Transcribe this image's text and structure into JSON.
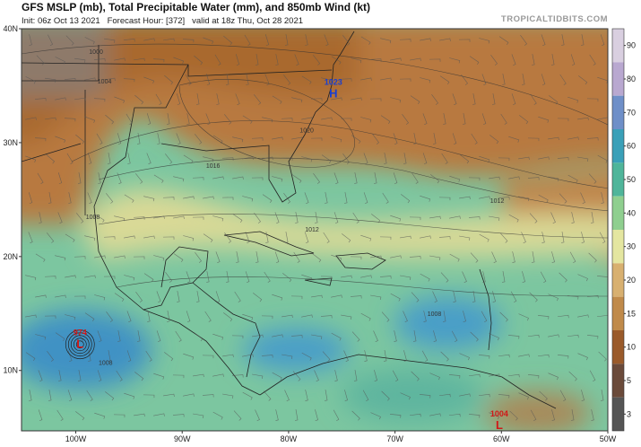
{
  "header": {
    "title": "GFS MSLP (mb), Total Precipitable Water (mm), and 850mb Wind (kt)",
    "subtitle": "Init: 06z Oct 13 2021   Forecast Hour: [372]   valid at 18z Thu, Oct 28 2021",
    "watermark": "TROPICALTIDBITS.COM"
  },
  "map": {
    "lonlim": [
      -105.1,
      -50
    ],
    "latlim": [
      4.7,
      40
    ],
    "lat_ticks": [
      {
        "value": 40,
        "label": "40N"
      },
      {
        "value": 30,
        "label": "30N"
      },
      {
        "value": 20,
        "label": "20N"
      },
      {
        "value": 10,
        "label": "10N"
      }
    ],
    "lon_ticks": [
      {
        "value": -100,
        "label": "100W"
      },
      {
        "value": -90,
        "label": "90W"
      },
      {
        "value": -80,
        "label": "80W"
      },
      {
        "value": -70,
        "label": "70W"
      },
      {
        "value": -60,
        "label": "60W"
      },
      {
        "value": -50,
        "label": "50W"
      }
    ],
    "centers": [
      {
        "kind": "H",
        "value": 1023,
        "lon": -75.8,
        "lat": 34.6
      },
      {
        "kind": "L",
        "value": 974,
        "lon": -99.6,
        "lat": 12.6
      },
      {
        "kind": "L",
        "value": 1004,
        "lon": -60.2,
        "lat": 5.5
      }
    ],
    "isobar_labels": [
      {
        "value": 1000,
        "lon": -98.1,
        "lat": 37.8
      },
      {
        "value": 1004,
        "lon": -97.3,
        "lat": 35.2
      },
      {
        "value": 1008,
        "lon": -98.4,
        "lat": 23.3
      },
      {
        "value": 1012,
        "lon": -77.8,
        "lat": 22.2
      },
      {
        "value": 1012,
        "lon": -60.4,
        "lat": 24.7
      },
      {
        "value": 1016,
        "lon": -87.1,
        "lat": 27.8
      },
      {
        "value": 1020,
        "lon": -78.3,
        "lat": 30.9
      },
      {
        "value": 1008,
        "lon": -66.3,
        "lat": 14.8
      },
      {
        "value": 1008,
        "lon": -97.2,
        "lat": 10.5
      }
    ]
  },
  "colorbar": {
    "levels": [
      90,
      80,
      70,
      60,
      50,
      40,
      30,
      20,
      15,
      10,
      5,
      3
    ],
    "colors": [
      "#d9cfe0",
      "#b9a8d0",
      "#6f8fc8",
      "#3aa0b8",
      "#4fb59a",
      "#8fcf8f",
      "#e4e6a0",
      "#d8b070",
      "#c08a4a",
      "#9a5a2a",
      "#6a4a3a",
      "#555555"
    ]
  }
}
